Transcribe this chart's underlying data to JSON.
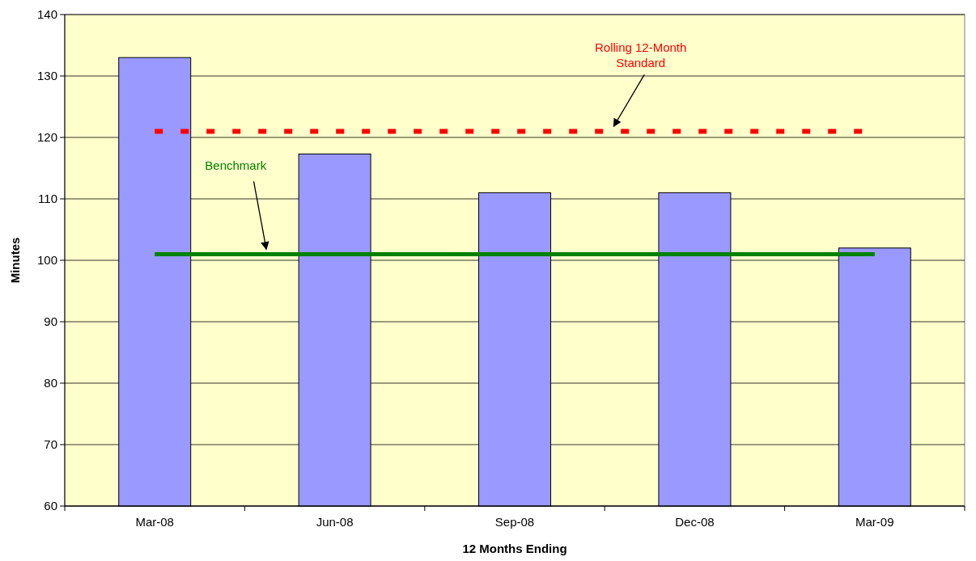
{
  "chart_data": {
    "type": "bar",
    "xlabel": "12 Months Ending",
    "ylabel": "Minutes",
    "categories": [
      "Mar-08",
      "Jun-08",
      "Sep-08",
      "Dec-08",
      "Mar-09"
    ],
    "values": [
      133,
      117.3,
      111,
      111,
      102
    ],
    "color": "#9999ff",
    "ylim": [
      60,
      140
    ],
    "yticks": [
      60,
      70,
      80,
      90,
      100,
      110,
      120,
      130,
      140
    ],
    "grid": "y",
    "ref_lines": [
      {
        "axis": "y",
        "value": 121,
        "label": "Rolling 12-Month Standard",
        "color": "#ff0000",
        "line_style": "dashed"
      },
      {
        "axis": "y",
        "value": 101,
        "label": "Benchmark",
        "color": "#008000",
        "line_style": "solid"
      }
    ]
  }
}
